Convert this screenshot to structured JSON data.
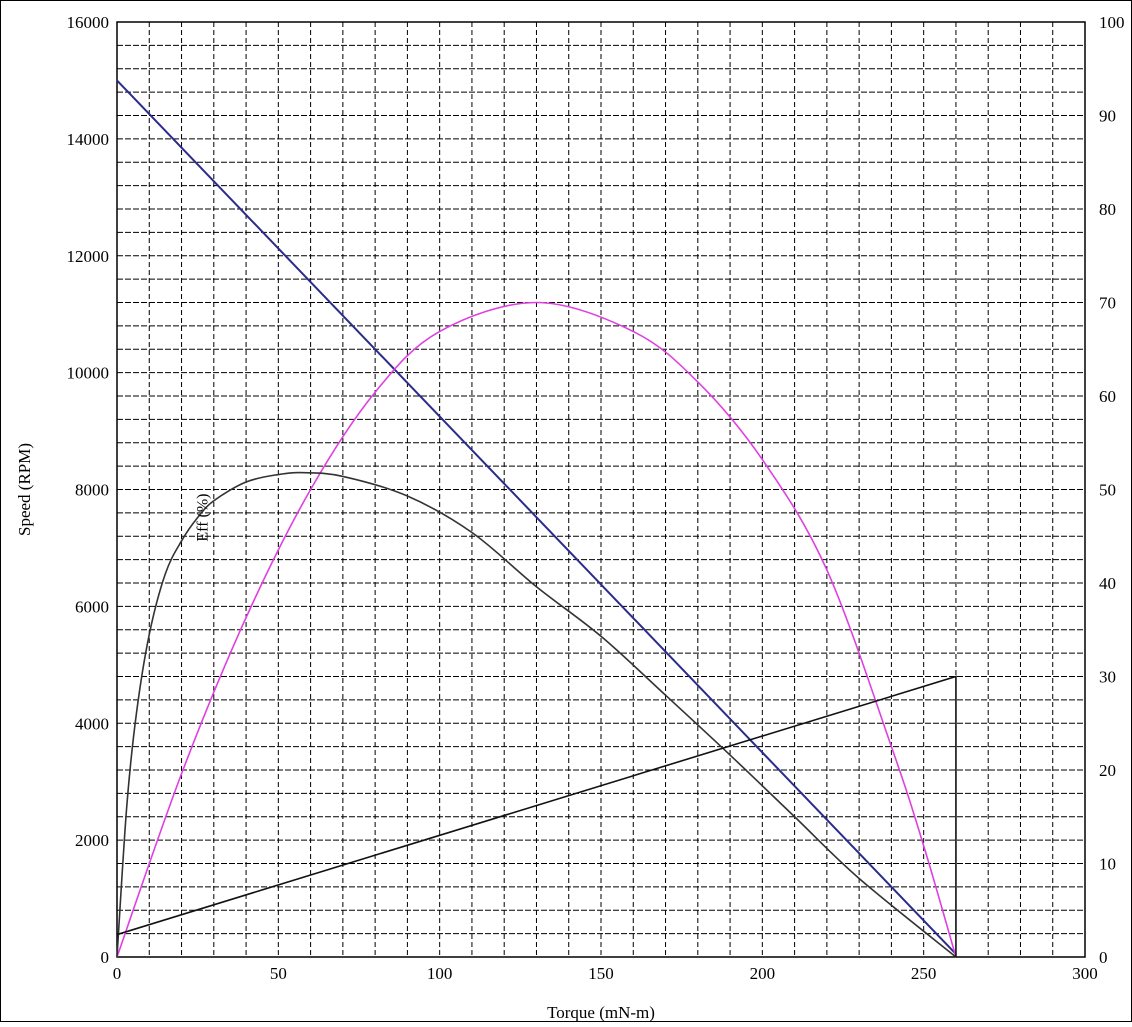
{
  "chart_data": {
    "type": "line",
    "xlabel": "Torque (mN-m)",
    "ylabel": "Speed (RPM)",
    "xlim": [
      0,
      300
    ],
    "ylim_left": [
      0,
      16000
    ],
    "ylim_right": [
      0,
      100
    ],
    "x_ticks": [
      "0",
      "50",
      "100",
      "150",
      "200",
      "250",
      "300"
    ],
    "y_left_ticks": [
      "0",
      "2000",
      "4000",
      "6000",
      "8000",
      "10000",
      "12000",
      "14000",
      "16000"
    ],
    "y_right_ticks": [
      "0",
      "10",
      "20",
      "30",
      "40",
      "50",
      "60",
      "70",
      "80",
      "90",
      "100"
    ],
    "grid": true,
    "annotation": "Eff (%)",
    "series": [
      {
        "axis": "left",
        "color": "#2b2b8a",
        "points": [
          [
            0,
            15000
          ],
          [
            260,
            50
          ]
        ]
      },
      {
        "axis": "right",
        "color": "#e040e0",
        "points": [
          [
            0,
            0
          ],
          [
            20,
            19.6
          ],
          [
            40,
            36.3
          ],
          [
            60,
            50
          ],
          [
            80,
            60.4
          ],
          [
            100,
            66.9
          ],
          [
            130,
            70
          ],
          [
            160,
            66.9
          ],
          [
            180,
            61.5
          ],
          [
            200,
            53.2
          ],
          [
            220,
            41.4
          ],
          [
            240,
            22.5
          ],
          [
            250,
            11.9
          ],
          [
            260,
            0
          ]
        ]
      },
      {
        "axis": "right",
        "color": "#333333",
        "points": [
          [
            0,
            0
          ],
          [
            3,
            16
          ],
          [
            6,
            26
          ],
          [
            10,
            34.5
          ],
          [
            15,
            41
          ],
          [
            20,
            44.5
          ],
          [
            25,
            47
          ],
          [
            30,
            48.8
          ],
          [
            40,
            50.8
          ],
          [
            50,
            51.6
          ],
          [
            58,
            51.8
          ],
          [
            70,
            51.4
          ],
          [
            90,
            49.3
          ],
          [
            110,
            45.4
          ],
          [
            130,
            39.6
          ],
          [
            150,
            34.3
          ],
          [
            170,
            28
          ],
          [
            190,
            21.6
          ],
          [
            210,
            15
          ],
          [
            230,
            8.4
          ],
          [
            260,
            0
          ]
        ]
      },
      {
        "axis": "right",
        "color": "#111111",
        "points": [
          [
            0,
            2.4
          ],
          [
            260,
            30
          ],
          [
            260,
            0
          ]
        ]
      }
    ]
  }
}
